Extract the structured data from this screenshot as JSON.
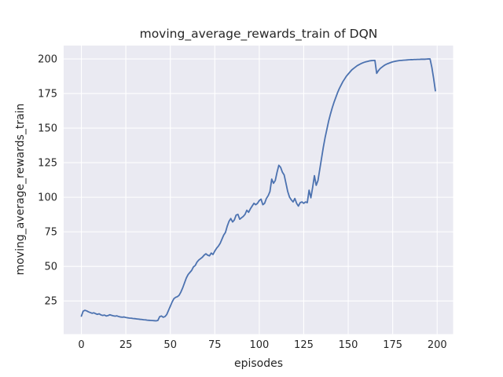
{
  "figure": {
    "title": "moving_average_rewards_train of DQN",
    "xlabel": "episodes",
    "ylabel": "moving_average_rewards_train",
    "colors": {
      "figure_background": "#ffffff",
      "axes_background": "#eaeaf2",
      "grid": "#ffffff",
      "text": "#262626",
      "line": "#4c72b0"
    }
  },
  "chart_data": {
    "type": "line",
    "title": "moving_average_rewards_train of DQN",
    "xlabel": "episodes",
    "ylabel": "moving_average_rewards_train",
    "xlim": [
      -9.95,
      208.95
    ],
    "ylim": [
      1.0,
      209.7
    ],
    "xticks": [
      0,
      25,
      50,
      75,
      100,
      125,
      150,
      175,
      200
    ],
    "yticks": [
      25,
      50,
      75,
      100,
      125,
      150,
      175,
      200
    ],
    "grid": true,
    "legend": null,
    "x_is_index": true,
    "series": [
      {
        "name": "moving_average_rewards_train",
        "color": "#4c72b0",
        "y": [
          14.0,
          17.6,
          18.2,
          17.8,
          17.1,
          16.6,
          16.1,
          16.4,
          15.8,
          15.3,
          15.7,
          14.9,
          14.5,
          14.8,
          14.1,
          14.4,
          15.0,
          14.6,
          14.2,
          14.0,
          14.2,
          13.7,
          13.4,
          13.2,
          13.4,
          13.0,
          12.8,
          12.6,
          12.5,
          12.3,
          12.2,
          12.0,
          11.9,
          11.7,
          11.6,
          11.4,
          11.3,
          11.1,
          11.0,
          10.9,
          10.8,
          10.7,
          10.6,
          10.9,
          13.6,
          14.1,
          13.2,
          13.7,
          15.2,
          18.2,
          21.2,
          24.2,
          26.6,
          27.6,
          28.1,
          29.2,
          31.6,
          34.6,
          38.1,
          41.6,
          44.1,
          45.6,
          47.1,
          49.6,
          50.6,
          53.1,
          54.6,
          55.6,
          56.6,
          58.1,
          59.1,
          58.1,
          57.6,
          59.6,
          58.6,
          61.1,
          63.1,
          64.6,
          66.6,
          69.6,
          72.6,
          74.6,
          79.1,
          82.6,
          84.6,
          82.1,
          83.6,
          87.1,
          87.6,
          84.1,
          85.1,
          86.1,
          87.6,
          90.6,
          89.1,
          91.6,
          93.6,
          95.6,
          94.6,
          95.6,
          97.6,
          98.6,
          94.6,
          95.6,
          99.1,
          101.1,
          104.1,
          113.1,
          110.1,
          112.1,
          118.1,
          123.1,
          121.6,
          118.1,
          116.1,
          110.1,
          104.1,
          100.1,
          98.1,
          96.6,
          99.1,
          95.6,
          93.6,
          96.1,
          96.6,
          95.6,
          96.6,
          96.1,
          105.1,
          99.6,
          107.1,
          115.6,
          108.6,
          112.1,
          120.1,
          128.1,
          136.1,
          143.1,
          149.1,
          155.1,
          160.1,
          164.6,
          168.6,
          172.1,
          175.6,
          178.6,
          181.1,
          183.6,
          185.6,
          187.6,
          189.1,
          190.6,
          192.1,
          193.1,
          194.1,
          195.1,
          195.8,
          196.5,
          197.1,
          197.6,
          198.0,
          198.3,
          198.6,
          198.8,
          198.9,
          199.0,
          189.6,
          191.6,
          193.1,
          194.1,
          195.1,
          195.9,
          196.5,
          197.0,
          197.5,
          197.9,
          198.2,
          198.5,
          198.7,
          198.9,
          199.0,
          199.1,
          199.2,
          199.3,
          199.4,
          199.5,
          199.5,
          199.6,
          199.6,
          199.7,
          199.7,
          199.8,
          199.8,
          199.8,
          199.9,
          200.0,
          200.0,
          194.0,
          186.0,
          177.0
        ]
      }
    ]
  }
}
